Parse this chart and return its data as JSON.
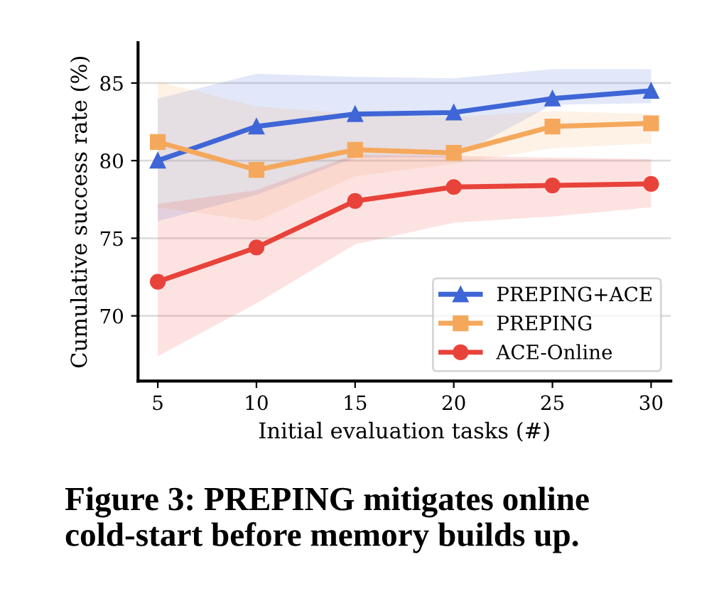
{
  "chart_data": {
    "type": "line",
    "xlabel": "Initial evaluation tasks (#)",
    "ylabel": "Cumulative success rate (%)",
    "x": [
      5,
      10,
      15,
      20,
      25,
      30
    ],
    "series": [
      {
        "name": "PREPING+ACE",
        "color": "#3f66d6",
        "marker": "triangle",
        "values": [
          80.0,
          82.2,
          83.0,
          83.1,
          84.0,
          84.5
        ],
        "lower": [
          76.1,
          77.8,
          80.2,
          80.2,
          83.6,
          83.7
        ],
        "upper": [
          84.0,
          85.6,
          85.4,
          85.3,
          85.9,
          85.9
        ]
      },
      {
        "name": "PREPING",
        "color": "#f5a85c",
        "marker": "square",
        "values": [
          81.2,
          79.4,
          80.7,
          80.5,
          82.2,
          82.4
        ],
        "lower": [
          77.0,
          76.1,
          79.0,
          79.8,
          80.8,
          81.1
        ],
        "upper": [
          85.1,
          83.5,
          83.0,
          82.8,
          83.2,
          83.0
        ]
      },
      {
        "name": "ACE-Online",
        "color": "#e8433a",
        "marker": "circle",
        "values": [
          72.2,
          74.4,
          77.4,
          78.3,
          78.4,
          78.5
        ],
        "lower": [
          67.4,
          70.8,
          74.6,
          76.0,
          76.4,
          77.0
        ],
        "upper": [
          77.2,
          78.1,
          80.4,
          80.3,
          80.2,
          80.1
        ]
      }
    ],
    "xlim": [
      4,
      31
    ],
    "xticks": [
      5,
      10,
      15,
      20,
      25,
      30
    ],
    "ylim": [
      65.8,
      87.6
    ],
    "yticks": [
      70,
      75,
      80,
      85
    ],
    "grid": "y",
    "legend": "bottom right",
    "line_style": "solid",
    "annotations": [
      "Figure 3: PREPING mitigates online cold-start before memory builds up."
    ]
  }
}
